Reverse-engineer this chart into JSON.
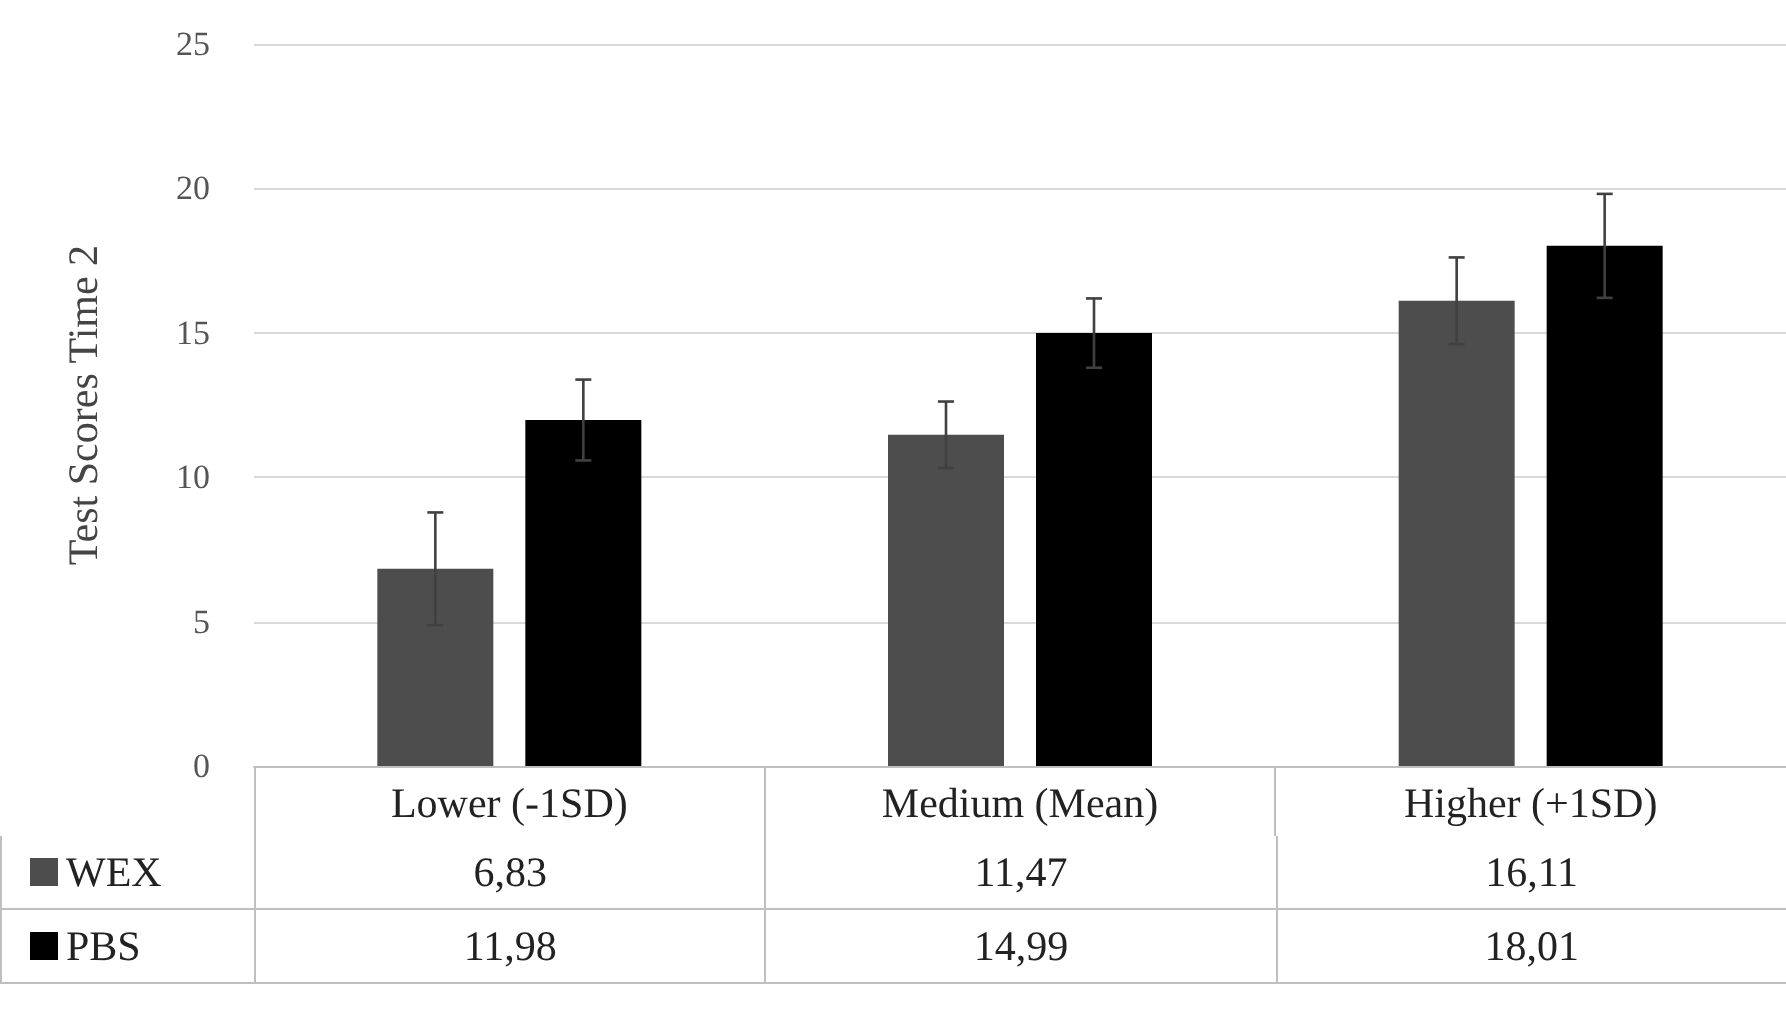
{
  "chart_data": {
    "type": "bar",
    "ylabel": "Test Scores Time 2",
    "categories": [
      "Lower (-1SD)",
      "Medium (Mean)",
      "Higher (+1SD)"
    ],
    "series": [
      {
        "name": "WEX",
        "color": "#4d4d4d",
        "values": [
          6.83,
          11.47,
          16.11
        ],
        "value_labels": [
          "6,83",
          "11,47",
          "16,11"
        ],
        "errors": [
          1.95,
          1.15,
          1.5
        ]
      },
      {
        "name": "PBS",
        "color": "#000000",
        "values": [
          11.98,
          14.99,
          18.01
        ],
        "value_labels": [
          "11,98",
          "14,99",
          "18,01"
        ],
        "errors": [
          1.4,
          1.2,
          1.8
        ]
      }
    ],
    "ylim": [
      0,
      25
    ],
    "yticks": [
      0,
      5,
      10,
      15,
      20,
      25
    ],
    "grid": "y",
    "legend": "bottom"
  }
}
